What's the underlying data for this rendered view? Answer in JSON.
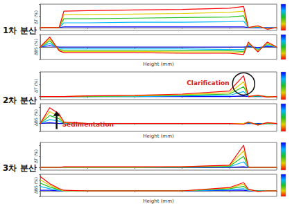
{
  "chart_data": [
    {
      "type": "line",
      "title": "1차 분산",
      "x_label": "Height (mm)",
      "tick_labels": false,
      "x": [
        0,
        2,
        4,
        5,
        10,
        20,
        30,
        40,
        43,
        44,
        46,
        48,
        50
      ],
      "xlim": [
        0,
        50
      ],
      "xticks": [
        0,
        10,
        20,
        30,
        40,
        50
      ],
      "charts": [
        {
          "y_label": "ΔT (%)",
          "ylim": [
            -5,
            40
          ],
          "yticks": [
            0,
            20,
            40
          ],
          "series": [
            {
              "color": "#0000ff",
              "values": [
                0,
                0,
                0,
                1,
                1,
                1,
                1,
                1,
                1,
                0,
                0,
                0,
                0
              ]
            },
            {
              "color": "#00b8ff",
              "values": [
                0,
                0,
                0,
                8,
                8,
                9,
                9,
                10,
                11,
                0,
                1,
                -1,
                0
              ]
            },
            {
              "color": "#20c020",
              "values": [
                0,
                0,
                0,
                15,
                15,
                16,
                17,
                18,
                20,
                0,
                2,
                -2,
                0
              ]
            },
            {
              "color": "#e0d000",
              "values": [
                0,
                0,
                0,
                22,
                22,
                23,
                24,
                26,
                28,
                0,
                2,
                -2,
                0
              ]
            },
            {
              "color": "#ff0000",
              "values": [
                0,
                0,
                0,
                28,
                29,
                30,
                31,
                33,
                36,
                0,
                3,
                -3,
                0
              ]
            }
          ]
        },
        {
          "y_label": "ΔBS (%)",
          "ylim": [
            -20,
            20
          ],
          "yticks": [
            -20,
            0,
            20
          ],
          "series": [
            {
              "color": "#0000ff",
              "values": [
                0,
                2,
                0,
                0,
                0,
                0,
                0,
                0,
                0,
                1,
                -1,
                1,
                0
              ]
            },
            {
              "color": "#00b8ff",
              "values": [
                0,
                6,
                -2,
                -3,
                -3,
                -3,
                -3,
                -4,
                -4,
                3,
                -3,
                3,
                0
              ]
            },
            {
              "color": "#20c020",
              "values": [
                0,
                10,
                -4,
                -5,
                -5,
                -5,
                -6,
                -6,
                -7,
                5,
                -5,
                5,
                0
              ]
            },
            {
              "color": "#e0d000",
              "values": [
                0,
                13,
                -5,
                -7,
                -7,
                -7,
                -8,
                -8,
                -9,
                6,
                -6,
                6,
                0
              ]
            },
            {
              "color": "#ff0000",
              "values": [
                0,
                16,
                -6,
                -9,
                -9,
                -9,
                -10,
                -10,
                -12,
                8,
                -8,
                8,
                0
              ]
            }
          ]
        }
      ]
    },
    {
      "type": "line",
      "title": "2차 분산",
      "x_label": "Height (mm)",
      "tick_labels": false,
      "x": [
        0,
        2,
        4,
        5,
        10,
        20,
        30,
        40,
        43,
        44,
        46,
        48,
        50
      ],
      "xlim": [
        0,
        50
      ],
      "xticks": [
        0,
        10,
        20,
        30,
        40,
        50
      ],
      "charts": [
        {
          "y_label": "ΔT (%)",
          "ylim": [
            -5,
            40
          ],
          "yticks": [
            0,
            20,
            40
          ],
          "annotation": {
            "text": "Clarification",
            "color": "#d42020",
            "marker": "circle"
          },
          "series": [
            {
              "color": "#0000ff",
              "values": [
                0,
                0,
                0,
                0,
                0,
                0,
                0,
                0,
                1,
                0,
                0,
                0,
                0
              ]
            },
            {
              "color": "#00b8ff",
              "values": [
                0,
                0,
                0,
                0,
                0,
                0,
                1,
                2,
                8,
                0,
                1,
                0,
                0
              ]
            },
            {
              "color": "#20c020",
              "values": [
                0,
                0,
                0,
                0,
                0,
                1,
                2,
                4,
                16,
                0,
                1,
                0,
                0
              ]
            },
            {
              "color": "#e0d000",
              "values": [
                0,
                0,
                0,
                0,
                1,
                1,
                3,
                6,
                24,
                0,
                2,
                -1,
                0
              ]
            },
            {
              "color": "#ff0000",
              "values": [
                0,
                0,
                0,
                0,
                1,
                2,
                4,
                9,
                34,
                0,
                2,
                -1,
                0
              ]
            }
          ]
        },
        {
          "y_label": "ΔBS (%)",
          "ylim": [
            -10,
            25
          ],
          "yticks": [
            -10,
            0,
            10,
            20
          ],
          "annotation": {
            "text": "Sedimentation",
            "color": "#d42020",
            "marker": "arrow"
          },
          "series": [
            {
              "color": "#0000ff",
              "values": [
                0,
                1,
                0,
                0,
                0,
                0,
                0,
                0,
                0,
                0,
                0,
                0,
                0
              ]
            },
            {
              "color": "#00b8ff",
              "values": [
                0,
                5,
                3,
                0,
                0,
                0,
                0,
                0,
                0,
                1,
                -1,
                0,
                0
              ]
            },
            {
              "color": "#20c020",
              "values": [
                0,
                10,
                6,
                1,
                0,
                0,
                0,
                0,
                0,
                1,
                -1,
                0,
                0
              ]
            },
            {
              "color": "#e0d000",
              "values": [
                0,
                15,
                9,
                1,
                0,
                0,
                0,
                0,
                0,
                2,
                -2,
                1,
                0
              ]
            },
            {
              "color": "#ff0000",
              "values": [
                0,
                20,
                12,
                2,
                0,
                0,
                0,
                0,
                -1,
                2,
                -2,
                1,
                0
              ]
            }
          ]
        }
      ]
    },
    {
      "type": "line",
      "title": "3차 분산",
      "x_label": "Height (mm)",
      "tick_labels": false,
      "x": [
        0,
        2,
        4,
        5,
        10,
        20,
        30,
        40,
        43,
        44,
        46,
        48,
        50
      ],
      "xlim": [
        0,
        50
      ],
      "xticks": [
        0,
        10,
        20,
        30,
        40,
        50
      ],
      "charts": [
        {
          "y_label": "ΔT (%)",
          "ylim": [
            -5,
            45
          ],
          "yticks": [
            0,
            20,
            40
          ],
          "series": [
            {
              "color": "#0000ff",
              "values": [
                0,
                0,
                0,
                0,
                0,
                0,
                0,
                0,
                1,
                0,
                0,
                0,
                0
              ]
            },
            {
              "color": "#00b8ff",
              "values": [
                0,
                0,
                0,
                0,
                0,
                0,
                0,
                1,
                10,
                0,
                0,
                0,
                0
              ]
            },
            {
              "color": "#20c020",
              "values": [
                0,
                0,
                0,
                0,
                0,
                0,
                0,
                2,
                20,
                0,
                0,
                0,
                0
              ]
            },
            {
              "color": "#e0d000",
              "values": [
                0,
                0,
                0,
                0,
                0,
                0,
                1,
                3,
                30,
                0,
                0,
                0,
                0
              ]
            },
            {
              "color": "#ff0000",
              "values": [
                0,
                0,
                0,
                1,
                1,
                1,
                1,
                4,
                40,
                0,
                0,
                0,
                0
              ]
            }
          ]
        },
        {
          "y_label": "ΔBS (%)",
          "ylim": [
            -10,
            30
          ],
          "yticks": [
            -10,
            0,
            10,
            20,
            30
          ],
          "series": [
            {
              "color": "#0000ff",
              "values": [
                1,
                1,
                0,
                0,
                0,
                0,
                0,
                1,
                1,
                0,
                0,
                0,
                0
              ]
            },
            {
              "color": "#00b8ff",
              "values": [
                8,
                4,
                1,
                0,
                0,
                0,
                0,
                2,
                4,
                1,
                0,
                0,
                0
              ]
            },
            {
              "color": "#20c020",
              "values": [
                14,
                7,
                2,
                0,
                0,
                0,
                0,
                4,
                8,
                2,
                0,
                0,
                0
              ]
            },
            {
              "color": "#e0d000",
              "values": [
                20,
                10,
                3,
                0,
                0,
                0,
                0,
                5,
                12,
                2,
                -1,
                0,
                0
              ]
            },
            {
              "color": "#ff0000",
              "values": [
                26,
                13,
                4,
                1,
                0,
                0,
                0,
                6,
                15,
                3,
                -1,
                0,
                0
              ]
            }
          ]
        }
      ]
    }
  ]
}
